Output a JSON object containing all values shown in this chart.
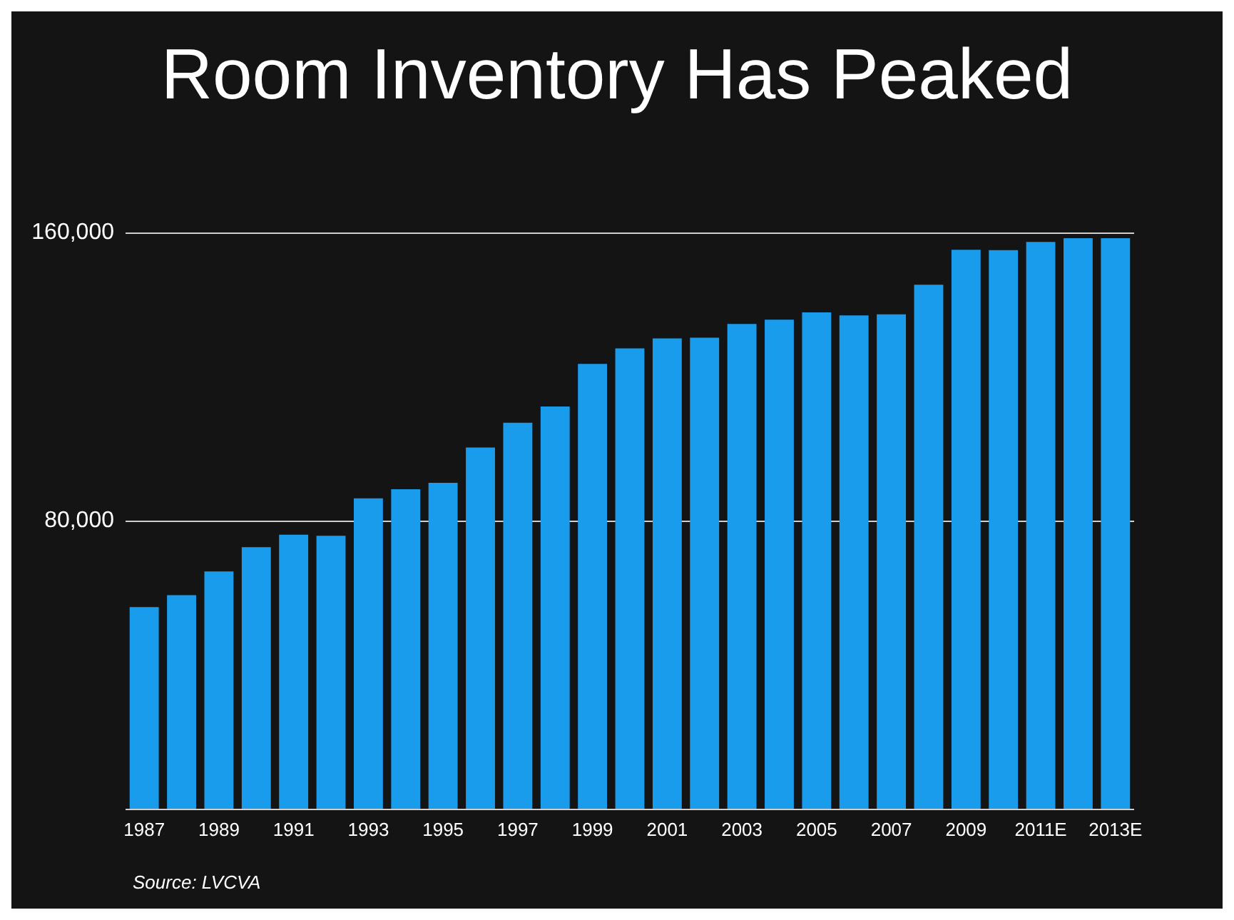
{
  "chart_data": {
    "type": "bar",
    "title": "Room Inventory Has Peaked",
    "categories": [
      "1987",
      null,
      "1989",
      null,
      "1991",
      null,
      "1993",
      null,
      "1995",
      null,
      "1997",
      null,
      "1999",
      null,
      "2001",
      null,
      "2003",
      null,
      "2005",
      null,
      "2007",
      null,
      "2009",
      null,
      "2011E",
      null,
      "2013E"
    ],
    "values": [
      56000,
      59300,
      65900,
      72600,
      76100,
      75800,
      86200,
      88700,
      90500,
      100300,
      107200,
      111700,
      123500,
      127800,
      130600,
      130800,
      134600,
      135800,
      137800,
      137000,
      137300,
      145500,
      155200,
      155100,
      157400,
      158400,
      158400
    ],
    "color": "#1a9cec",
    "ylim": [
      0,
      160000
    ],
    "yticks": [
      {
        "value": 0,
        "label": null
      },
      {
        "value": 80000,
        "label": "80,000"
      },
      {
        "value": 160000,
        "label": "160,000"
      }
    ],
    "grid": "y",
    "annotations": [
      "Source: LVCVA"
    ]
  }
}
